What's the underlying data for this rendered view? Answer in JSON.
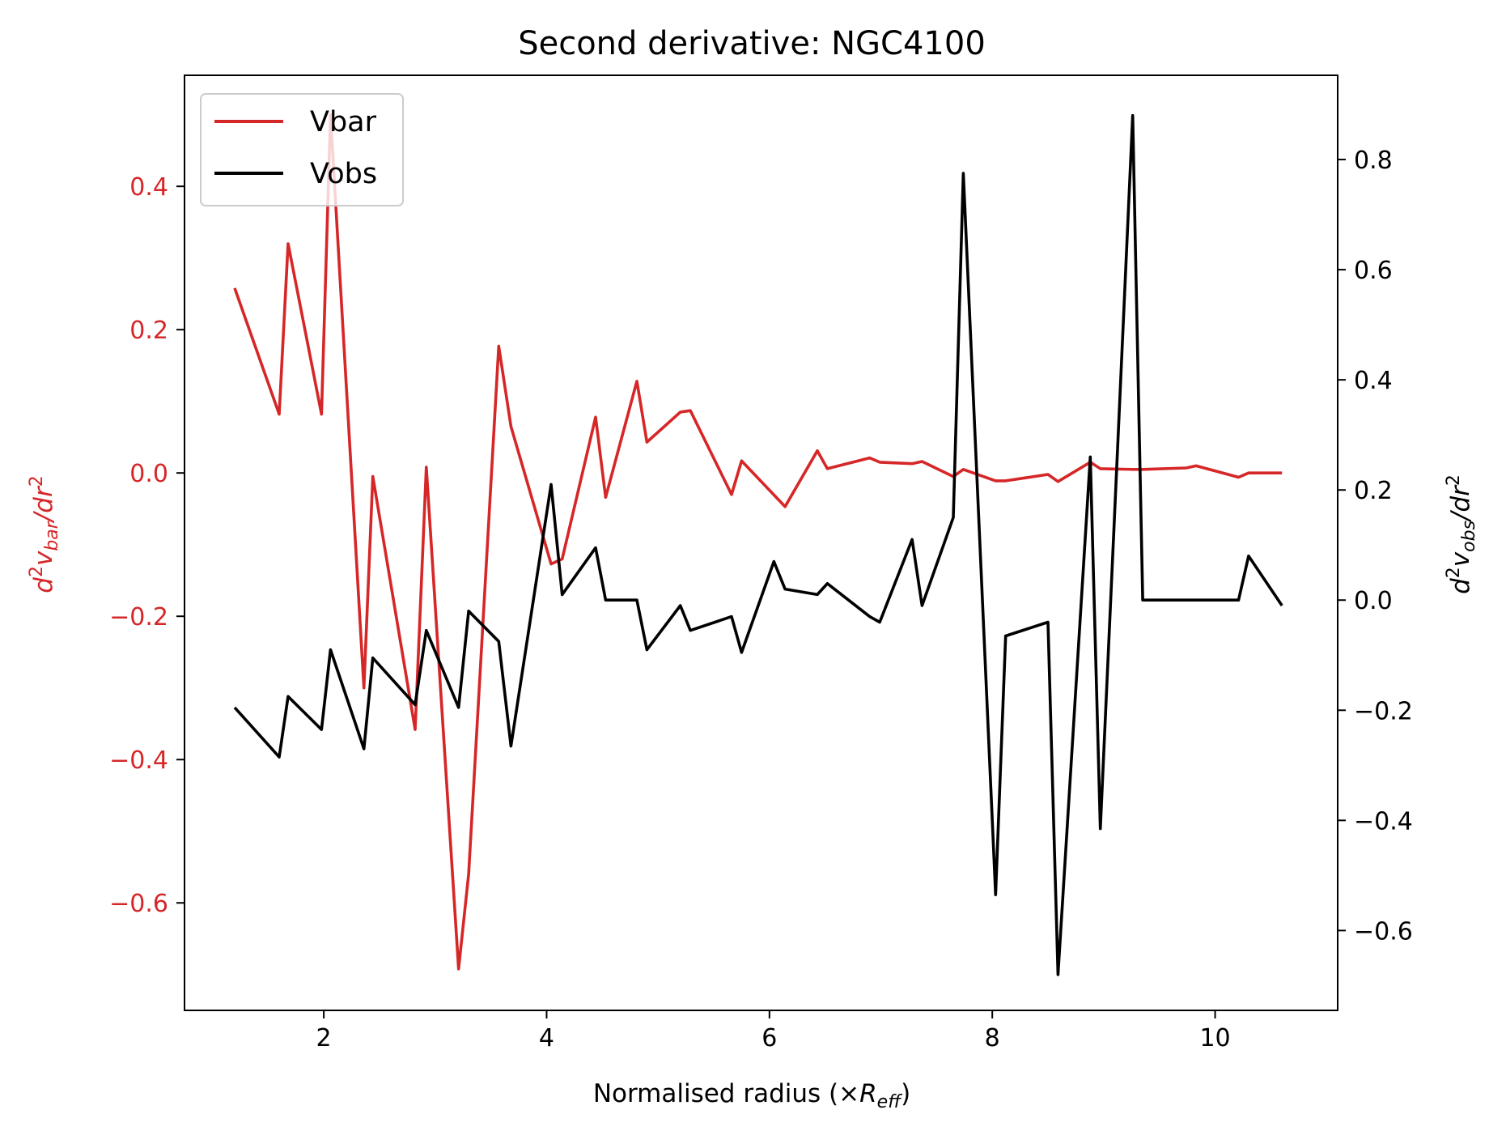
{
  "chart_data": {
    "type": "line",
    "title": "Second derivative: NGC4100",
    "xlabel": "Normalised radius (×R_eff)",
    "ylabel_left": "d²v_bar/dr²",
    "ylabel_right": "d²v_obs/dr²",
    "xlim": [
      0.75,
      11.1
    ],
    "ylim_left": [
      -0.75,
      0.555
    ],
    "ylim_right": [
      -0.745,
      0.953
    ],
    "x_ticks": [
      2,
      4,
      6,
      8,
      10
    ],
    "y_ticks_left": [
      -0.6,
      -0.4,
      -0.2,
      0.0,
      0.2,
      0.4
    ],
    "y_ticks_right": [
      -0.6,
      -0.4,
      -0.2,
      0.0,
      0.2,
      0.4,
      0.6,
      0.8
    ],
    "legend_position": "top-left",
    "series": [
      {
        "name": "Vbar",
        "axis": "left",
        "color": "#d62728",
        "x": [
          1.2,
          1.6,
          1.68,
          1.98,
          2.06,
          2.36,
          2.44,
          2.82,
          2.92,
          3.21,
          3.3,
          3.57,
          3.68,
          4.04,
          4.14,
          4.44,
          4.53,
          4.81,
          4.9,
          5.2,
          5.29,
          5.66,
          5.75,
          6.14,
          6.43,
          6.52,
          6.9,
          6.99,
          7.28,
          7.37,
          7.65,
          7.74,
          8.03,
          8.12,
          8.5,
          8.59,
          8.88,
          8.97,
          9.26,
          9.35,
          9.74,
          9.83,
          10.21,
          10.3,
          10.6
        ],
        "y": [
          0.258,
          0.082,
          0.32,
          0.082,
          0.5,
          -0.3,
          -0.005,
          -0.358,
          0.008,
          -0.692,
          -0.56,
          0.177,
          0.065,
          -0.127,
          -0.12,
          0.078,
          -0.034,
          0.128,
          0.043,
          0.085,
          0.087,
          -0.03,
          0.017,
          -0.047,
          0.031,
          0.006,
          0.021,
          0.015,
          0.013,
          0.016,
          -0.005,
          0.005,
          -0.011,
          -0.011,
          -0.002,
          -0.012,
          0.015,
          0.006,
          0.005,
          0.005,
          0.007,
          0.01,
          -0.006,
          0.0,
          0.0
        ]
      },
      {
        "name": "Vobs",
        "axis": "right",
        "color": "#000000",
        "x": [
          1.2,
          1.6,
          1.68,
          1.98,
          2.06,
          2.36,
          2.44,
          2.82,
          2.92,
          3.21,
          3.3,
          3.57,
          3.68,
          4.04,
          4.14,
          4.44,
          4.53,
          4.81,
          4.9,
          5.2,
          5.29,
          5.66,
          5.75,
          6.04,
          6.14,
          6.43,
          6.52,
          6.9,
          6.99,
          7.28,
          7.37,
          7.65,
          7.74,
          8.03,
          8.12,
          8.5,
          8.59,
          8.88,
          8.97,
          9.26,
          9.35,
          9.74,
          9.83,
          10.21,
          10.3,
          10.6
        ],
        "y": [
          -0.195,
          -0.285,
          -0.175,
          -0.235,
          -0.09,
          -0.27,
          -0.105,
          -0.19,
          -0.055,
          -0.195,
          -0.02,
          -0.075,
          -0.265,
          0.21,
          0.01,
          0.095,
          0.0,
          0.0,
          -0.09,
          -0.01,
          -0.055,
          -0.03,
          -0.095,
          0.07,
          0.02,
          0.01,
          0.03,
          -0.03,
          -0.04,
          0.11,
          -0.01,
          0.15,
          0.775,
          -0.535,
          -0.065,
          -0.04,
          -0.68,
          0.26,
          -0.415,
          0.88,
          0.0,
          0.0,
          0.0,
          0.0,
          0.08,
          -0.01
        ]
      }
    ]
  }
}
